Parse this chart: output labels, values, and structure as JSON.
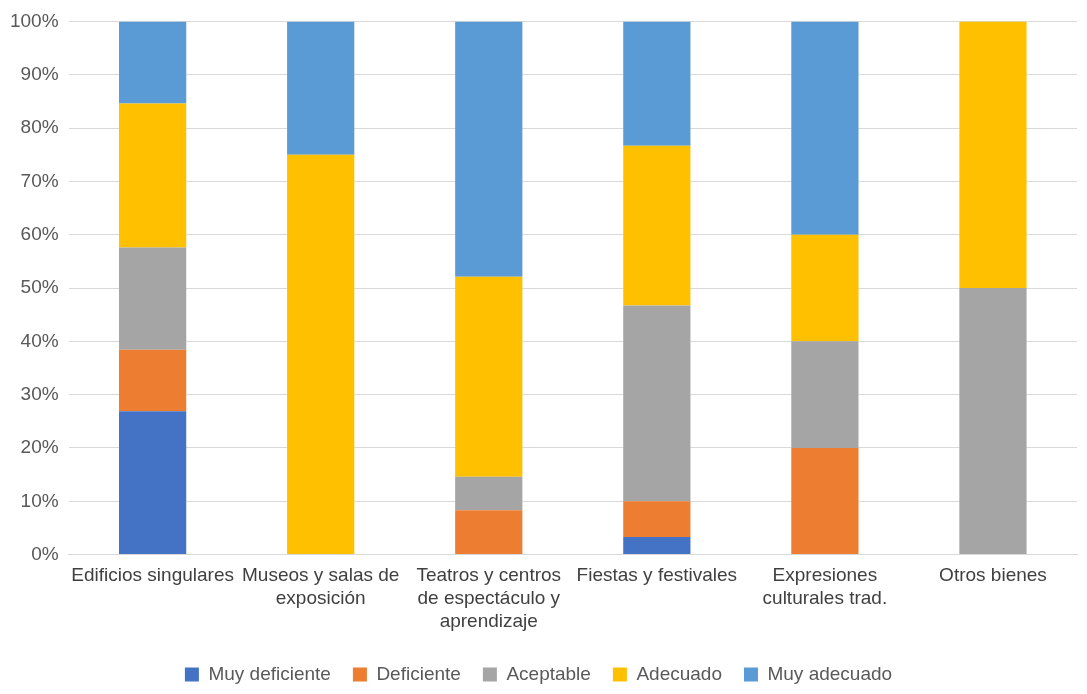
{
  "chart_data": {
    "type": "bar",
    "stacked": true,
    "categories": [
      "Edificios singulares",
      "Museos y salas de exposición",
      "Teatros y centros de espectáculo y aprendizaje",
      "Fiestas y festivales",
      "Expresiones culturales trad.",
      "Otros bienes"
    ],
    "series": [
      {
        "name": "Muy deficiente",
        "color": "#4472c4",
        "values": [
          26.9,
          0,
          0,
          3.3,
          0,
          0
        ]
      },
      {
        "name": "Deficiente",
        "color": "#ed7d31",
        "values": [
          11.5,
          0,
          8.3,
          6.7,
          20,
          0
        ]
      },
      {
        "name": "Aceptable",
        "color": "#a5a5a5",
        "values": [
          19.2,
          0,
          6.3,
          36.7,
          20,
          50
        ]
      },
      {
        "name": "Adecuado",
        "color": "#ffc000",
        "values": [
          27.0,
          75,
          37.5,
          30,
          20,
          50
        ]
      },
      {
        "name": "Muy adecuado",
        "color": "#5b9bd5",
        "values": [
          15.4,
          25,
          47.9,
          23.3,
          40,
          0
        ]
      }
    ],
    "ylim": [
      0,
      100
    ],
    "yticks": [
      {
        "value": 0,
        "label": "0%"
      },
      {
        "value": 10,
        "label": "10%"
      },
      {
        "value": 20,
        "label": "20%"
      },
      {
        "value": 30,
        "label": "30%"
      },
      {
        "value": 40,
        "label": "40%"
      },
      {
        "value": 50,
        "label": "50%"
      },
      {
        "value": 60,
        "label": "60%"
      },
      {
        "value": 70,
        "label": "70%"
      },
      {
        "value": 80,
        "label": "80%"
      },
      {
        "value": 90,
        "label": "90%"
      },
      {
        "value": 100,
        "label": "100%"
      }
    ],
    "grid": "y",
    "legend": "bottom"
  }
}
